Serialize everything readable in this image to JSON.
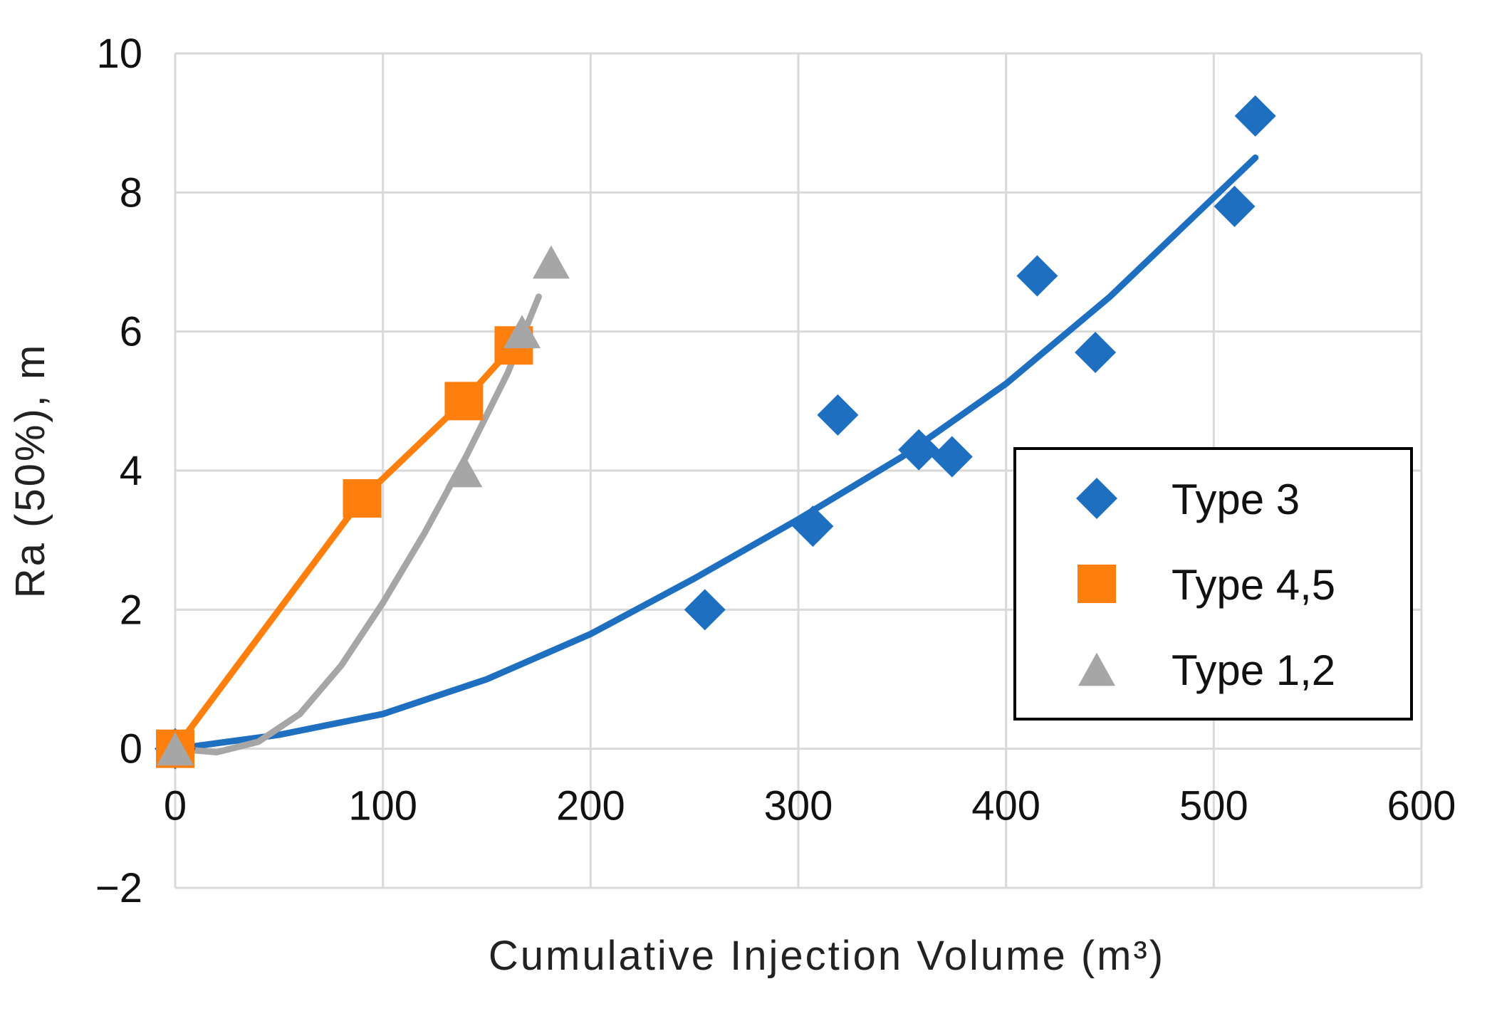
{
  "chart_data": {
    "type": "scatter",
    "title": "",
    "xlabel": "Cumulative  Injection  Volume (m³)",
    "ylabel": "Ra (50%), m",
    "xlim": [
      0,
      600
    ],
    "ylim": [
      -2,
      10
    ],
    "xticks": [
      0,
      100,
      200,
      300,
      400,
      500,
      600
    ],
    "yticks": [
      -2,
      0,
      2,
      4,
      6,
      8,
      10
    ],
    "xtick_labels": [
      "0",
      "100",
      "200",
      "300",
      "400",
      "500",
      "600"
    ],
    "ytick_labels": [
      "−2",
      "0",
      "2",
      "4",
      "6",
      "8",
      "10"
    ],
    "grid": true,
    "legend_position": "right",
    "series": [
      {
        "name": "Type 3",
        "color": "#1f6fc0",
        "marker": "diamond",
        "points": [
          {
            "x": 0,
            "y": 0
          },
          {
            "x": 255,
            "y": 2.0
          },
          {
            "x": 307,
            "y": 3.2
          },
          {
            "x": 319,
            "y": 4.8
          },
          {
            "x": 358,
            "y": 4.3
          },
          {
            "x": 374,
            "y": 4.2
          },
          {
            "x": 415,
            "y": 6.8
          },
          {
            "x": 443,
            "y": 5.7
          },
          {
            "x": 510,
            "y": 7.8
          },
          {
            "x": 520,
            "y": 9.1
          }
        ],
        "trend": [
          {
            "x": 0,
            "y": 0
          },
          {
            "x": 50,
            "y": 0.2
          },
          {
            "x": 100,
            "y": 0.5
          },
          {
            "x": 150,
            "y": 1.0
          },
          {
            "x": 200,
            "y": 1.65
          },
          {
            "x": 250,
            "y": 2.45
          },
          {
            "x": 300,
            "y": 3.3
          },
          {
            "x": 350,
            "y": 4.2
          },
          {
            "x": 400,
            "y": 5.25
          },
          {
            "x": 450,
            "y": 6.5
          },
          {
            "x": 520,
            "y": 8.5
          }
        ]
      },
      {
        "name": "Type 4,5",
        "color": "#ff7f0e",
        "marker": "square",
        "points": [
          {
            "x": 0,
            "y": 0
          },
          {
            "x": 90,
            "y": 3.6
          },
          {
            "x": 139,
            "y": 5.0
          },
          {
            "x": 163,
            "y": 5.8
          }
        ],
        "trend": [
          {
            "x": 0,
            "y": 0
          },
          {
            "x": 90,
            "y": 3.6
          },
          {
            "x": 139,
            "y": 5.0
          },
          {
            "x": 163,
            "y": 5.8
          }
        ]
      },
      {
        "name": "Type 1,2",
        "color": "#a6a6a6",
        "marker": "triangle",
        "points": [
          {
            "x": 0,
            "y": 0
          },
          {
            "x": 139,
            "y": 4.0
          },
          {
            "x": 167,
            "y": 6.0
          },
          {
            "x": 181,
            "y": 7.0
          }
        ],
        "trend": [
          {
            "x": 0,
            "y": 0
          },
          {
            "x": 20,
            "y": -0.05
          },
          {
            "x": 40,
            "y": 0.1
          },
          {
            "x": 60,
            "y": 0.5
          },
          {
            "x": 80,
            "y": 1.2
          },
          {
            "x": 100,
            "y": 2.1
          },
          {
            "x": 120,
            "y": 3.1
          },
          {
            "x": 140,
            "y": 4.2
          },
          {
            "x": 160,
            "y": 5.4
          },
          {
            "x": 175,
            "y": 6.5
          }
        ]
      }
    ]
  }
}
